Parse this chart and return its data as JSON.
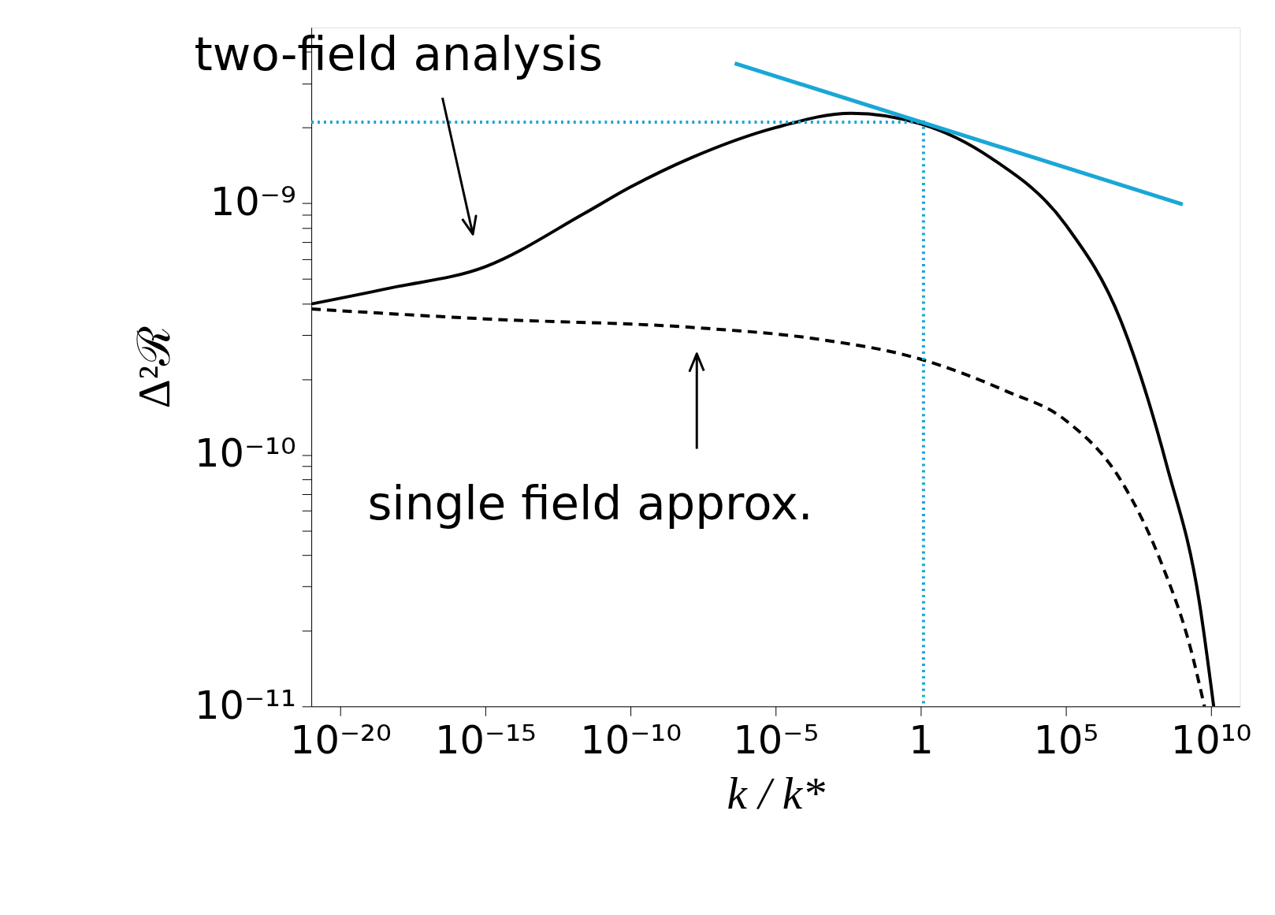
{
  "chart_data": {
    "type": "line",
    "xlabel": "k / k*",
    "ylabel": "Δ²ℛ",
    "log": "xy",
    "grid": false,
    "xlim": [
      1e-21,
      100000000000.0
    ],
    "ylim": [
      1e-11,
      5e-09
    ],
    "xticks": [
      {
        "value": 1e-20,
        "label": "10⁻²⁰"
      },
      {
        "value": 1e-15,
        "label": "10⁻¹⁵"
      },
      {
        "value": 1e-10,
        "label": "10⁻¹⁰"
      },
      {
        "value": 1e-05,
        "label": "10⁻⁵"
      },
      1,
      {
        "value": 100000.0,
        "label": "10⁵"
      },
      {
        "value": 10000000000.0,
        "label": "10¹⁰"
      }
    ],
    "yticks": [
      {
        "value": 1e-11,
        "label": "10⁻¹¹"
      },
      {
        "value": 2e-11,
        "label": null
      },
      {
        "value": 3e-11,
        "label": null
      },
      {
        "value": 4e-11,
        "label": null
      },
      {
        "value": 5e-11,
        "label": null
      },
      {
        "value": 6e-11,
        "label": null
      },
      {
        "value": 7e-11,
        "label": null
      },
      {
        "value": 8e-11,
        "label": null
      },
      {
        "value": 9e-11,
        "label": null
      },
      {
        "value": 1e-10,
        "label": "10⁻¹⁰"
      },
      {
        "value": 2e-10,
        "label": null
      },
      {
        "value": 3e-10,
        "label": null
      },
      {
        "value": 4e-10,
        "label": null
      },
      {
        "value": 5e-10,
        "label": null
      },
      {
        "value": 6e-10,
        "label": null
      },
      {
        "value": 7e-10,
        "label": null
      },
      {
        "value": 8e-10,
        "label": null
      },
      {
        "value": 9e-10,
        "label": null
      },
      {
        "value": 1e-09,
        "label": "10⁻⁹"
      },
      {
        "value": 2e-09,
        "label": null
      },
      {
        "value": 3e-09,
        "label": null
      },
      {
        "value": 4e-09,
        "label": null
      }
    ],
    "series": [
      {
        "color": "#000000",
        "line_style": "solid",
        "x": [
          1e-21,
          5e-19,
          1e-15,
          2.5e-12,
          1e-10,
          1.3e-08,
          1e-05,
          0.004,
          1,
          250,
          100000.0,
          8000000.0,
          300000000.0,
          4000000000.0,
          12500000000.0
        ],
        "values": [
          3.98e-10,
          4.6e-10,
          5.6e-10,
          9.1e-10,
          1.16e-09,
          1.52e-09,
          2e-09,
          2.28e-09,
          2.07e-09,
          1.52e-09,
          8.2e-10,
          3.4e-10,
          9.1e-11,
          2.6e-11,
          1e-11
        ]
      },
      {
        "color": "#000000",
        "line_style": "dashed",
        "x": [
          1e-21,
          1e-15,
          2e-08,
          0.0002,
          1,
          800,
          100000.0,
          8000000.0,
          200000000.0,
          2000000000.0,
          6000000000.0
        ],
        "values": [
          3.8e-10,
          3.47e-10,
          3.2e-10,
          2.9e-10,
          2.4e-10,
          1.8e-10,
          1.37e-10,
          7.9e-11,
          3.7e-11,
          1.7e-11,
          1e-11
        ]
      },
      {
        "color": "#1aa7d6",
        "line_style": "solid",
        "x": [
          3.9e-07,
          1070000000.0
        ],
        "values": [
          3.6e-09,
          9.9e-10
        ]
      }
    ],
    "ref_lines": [
      {
        "axis": "y",
        "value": 2.1e-09,
        "color": "#1aa7d6",
        "line_style": "dotted"
      },
      {
        "axis": "x",
        "value": 1.25,
        "color": "#1aa7d6",
        "line_style": "dotted"
      }
    ],
    "annotations": [
      "two-field analysis",
      "single field approx."
    ]
  }
}
